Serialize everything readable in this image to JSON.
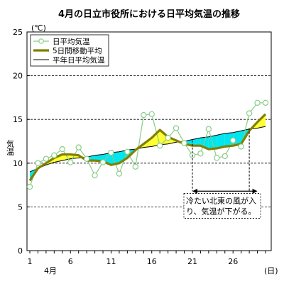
{
  "chart_data": {
    "type": "line",
    "title": "4月の日立市役所における日平均気温の推移",
    "y_unit": "(℃)",
    "ylabel": "気温",
    "x_unit": "(日)",
    "x_month_label": "4月",
    "ylim": [
      0,
      25
    ],
    "y_ticks": [
      0,
      5,
      10,
      15,
      20,
      25
    ],
    "xlim": [
      1,
      30
    ],
    "x_ticks": [
      1,
      6,
      11,
      16,
      21,
      26
    ],
    "grid": "horizontal-dashed",
    "legend_position": "top-left",
    "x": [
      1,
      2,
      3,
      4,
      5,
      6,
      7,
      8,
      9,
      10,
      11,
      12,
      13,
      14,
      15,
      16,
      17,
      18,
      19,
      20,
      21,
      22,
      23,
      24,
      25,
      26,
      27,
      28,
      29,
      30
    ],
    "series": [
      {
        "name": "日平均気温",
        "style": "line-with-circle-markers",
        "color": "#88cc88",
        "values": [
          7.3,
          10.0,
          10.5,
          10.9,
          11.6,
          10.1,
          11.8,
          10.5,
          8.6,
          10.1,
          11.2,
          8.8,
          11.3,
          9.6,
          15.5,
          15.6,
          12.0,
          12.9,
          14.0,
          12.3,
          10.9,
          11.1,
          13.9,
          10.6,
          10.8,
          12.6,
          11.9,
          15.7,
          16.9,
          16.9
        ]
      },
      {
        "name": "5日間移動平均",
        "style": "thick-line",
        "color": "#808000",
        "values": [
          8.0,
          9.4,
          10.0,
          10.6,
          11.0,
          11.0,
          10.9,
          10.3,
          10.3,
          10.2,
          9.8,
          10.0,
          10.6,
          11.5,
          12.2,
          12.9,
          13.8,
          13.0,
          12.6,
          12.2,
          12.0,
          12.0,
          11.6,
          11.7,
          11.9,
          12.0,
          12.2,
          13.7,
          14.7,
          15.6
        ]
      },
      {
        "name": "平年日平均気温",
        "style": "thin-line",
        "color": "#000000",
        "values": [
          9.0,
          9.4,
          9.8,
          10.1,
          10.3,
          10.5,
          10.6,
          10.7,
          10.9,
          11.0,
          11.2,
          11.3,
          11.5,
          11.6,
          11.8,
          11.9,
          12.1,
          12.2,
          12.4,
          12.5,
          12.7,
          12.9,
          13.0,
          13.2,
          13.4,
          13.5,
          13.7,
          13.9,
          14.0,
          14.2
        ]
      }
    ],
    "fill_colors": {
      "above_normal": "#ffff33",
      "below_normal": "#00e5ee"
    },
    "annotation": {
      "text_line1": "冷たい北東の風が入",
      "text_line2": "り、気温が下がる。",
      "arrow_from_day": 21,
      "arrow_to_day": 29,
      "dashed_from_day": 21,
      "dashed_to_day": 28
    }
  }
}
